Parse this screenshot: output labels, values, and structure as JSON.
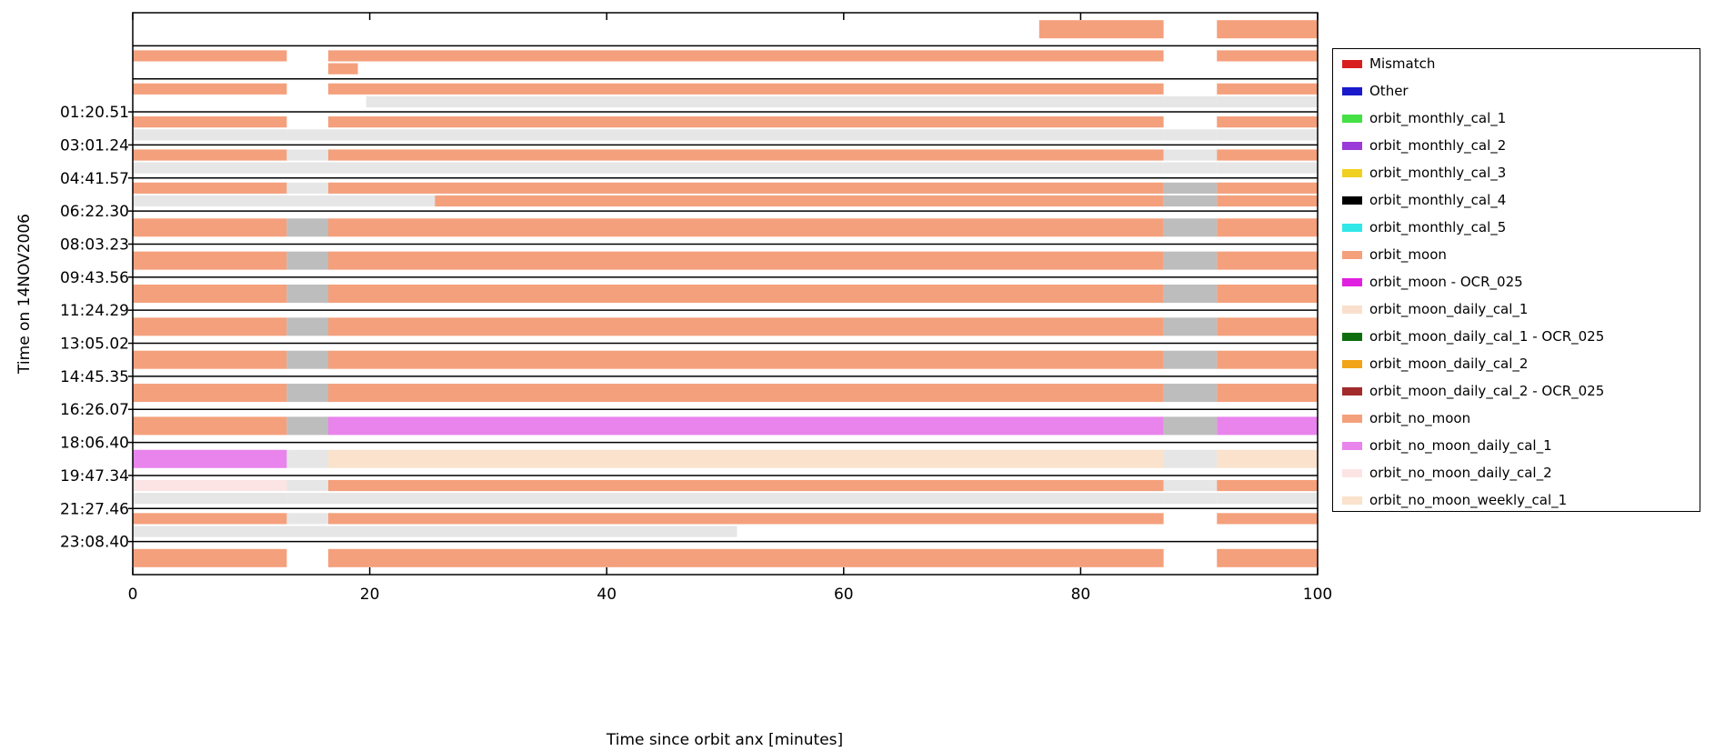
{
  "chart_data": {
    "type": "timeline",
    "xlabel": "Time since orbit anx [minutes]",
    "ylabel": "Time on 14NOV2006",
    "xlim": [
      0,
      100
    ],
    "x_ticks": [
      0,
      20,
      40,
      60,
      80,
      100
    ],
    "y_tick_labels": [
      "01:20.51",
      "03:01.24",
      "04:41.57",
      "06:22.30",
      "08:03.23",
      "09:43.56",
      "11:24.29",
      "13:05.02",
      "14:45.35",
      "16:26.07",
      "18:06.40",
      "19:47.34",
      "21:27.46",
      "23:08.40"
    ],
    "grid": false,
    "legend_position": "right",
    "legend": [
      {
        "name": "Mismatch",
        "color": "#d81e1e"
      },
      {
        "name": "Other",
        "color": "#1a1acc"
      },
      {
        "name": "orbit_monthly_cal_1",
        "color": "#44e044"
      },
      {
        "name": "orbit_monthly_cal_2",
        "color": "#9a3ad8"
      },
      {
        "name": "orbit_monthly_cal_3",
        "color": "#f0d020"
      },
      {
        "name": "orbit_monthly_cal_4",
        "color": "#000000"
      },
      {
        "name": "orbit_monthly_cal_5",
        "color": "#30e8e8"
      },
      {
        "name": "orbit_moon",
        "color": "#f4a07c"
      },
      {
        "name": "orbit_moon - OCR_025",
        "color": "#e020e0"
      },
      {
        "name": "orbit_moon_daily_cal_1",
        "color": "#fae0cc"
      },
      {
        "name": "orbit_moon_daily_cal_1 - OCR_025",
        "color": "#0e6e0e"
      },
      {
        "name": "orbit_moon_daily_cal_2",
        "color": "#f2a418"
      },
      {
        "name": "orbit_moon_daily_cal_2 - OCR_025",
        "color": "#a22a2a"
      },
      {
        "name": "orbit_no_moon",
        "color": "#f4a07c"
      },
      {
        "name": "orbit_no_moon_daily_cal_1",
        "color": "#e884ec"
      },
      {
        "name": "orbit_no_moon_daily_cal_2",
        "color": "#fce4e4"
      },
      {
        "name": "orbit_no_moon_weekly_cal_1",
        "color": "#fae2cc"
      }
    ],
    "gap_color": "#bdbdbd",
    "light_color": "#e6e6e6",
    "orbits": [
      {
        "lanes": [
          [
            [
              76.5,
              87,
              "#f4a07c"
            ],
            [
              91.5,
              100,
              "#f4a07c"
            ]
          ]
        ]
      },
      {
        "lanes": [
          [
            [
              0,
              13,
              "#f4a07c"
            ],
            [
              16.5,
              87,
              "#f4a07c"
            ],
            [
              91.5,
              100,
              "#f4a07c"
            ]
          ],
          [
            [
              16.5,
              19,
              "#f4a07c"
            ]
          ]
        ]
      },
      {
        "lanes": [
          [
            [
              0,
              13,
              "#f4a07c"
            ],
            [
              16.5,
              87,
              "#f4a07c"
            ],
            [
              91.5,
              100,
              "#f4a07c"
            ]
          ],
          [
            [
              19.7,
              87,
              "#e6e6e6"
            ],
            [
              87,
              91.5,
              "#e6e6e6"
            ],
            [
              91.5,
              100,
              "#e6e6e6"
            ]
          ]
        ]
      },
      {
        "lanes": [
          [
            [
              0,
              13,
              "#f4a07c"
            ],
            [
              16.5,
              87,
              "#f4a07c"
            ],
            [
              91.5,
              100,
              "#f4a07c"
            ]
          ],
          [
            [
              0,
              13,
              "#e6e6e6"
            ],
            [
              13,
              16.5,
              "#e6e6e6"
            ],
            [
              16.5,
              87,
              "#e6e6e6"
            ],
            [
              87,
              91.5,
              "#e6e6e6"
            ],
            [
              91.5,
              100,
              "#e6e6e6"
            ]
          ]
        ]
      },
      {
        "lanes": [
          [
            [
              0,
              13,
              "#f4a07c"
            ],
            [
              13,
              16.5,
              "#e6e6e6"
            ],
            [
              16.5,
              87,
              "#f4a07c"
            ],
            [
              87,
              91.5,
              "#e6e6e6"
            ],
            [
              91.5,
              100,
              "#f4a07c"
            ]
          ],
          [
            [
              0,
              13,
              "#e6e6e6"
            ],
            [
              13,
              16.5,
              "#e6e6e6"
            ],
            [
              16.5,
              87,
              "#e6e6e6"
            ],
            [
              87,
              91.5,
              "#e6e6e6"
            ],
            [
              91.5,
              100,
              "#e6e6e6"
            ]
          ]
        ]
      },
      {
        "lanes": [
          [
            [
              0,
              13,
              "#f4a07c"
            ],
            [
              13,
              16.5,
              "#e6e6e6"
            ],
            [
              16.5,
              87,
              "#f4a07c"
            ],
            [
              87,
              91.5,
              "#bdbdbd"
            ],
            [
              91.5,
              100,
              "#f4a07c"
            ]
          ],
          [
            [
              0,
              25.5,
              "#e6e6e6"
            ],
            [
              25.5,
              87,
              "#f4a07c"
            ],
            [
              87,
              91.5,
              "#bdbdbd"
            ],
            [
              91.5,
              100,
              "#f4a07c"
            ]
          ]
        ]
      },
      {
        "lanes": [
          [
            [
              0,
              13,
              "#f4a07c"
            ],
            [
              13,
              16.5,
              "#bdbdbd"
            ],
            [
              16.5,
              87,
              "#f4a07c"
            ],
            [
              87,
              91.5,
              "#bdbdbd"
            ],
            [
              91.5,
              100,
              "#f4a07c"
            ]
          ]
        ]
      },
      {
        "lanes": [
          [
            [
              0,
              13,
              "#f4a07c"
            ],
            [
              13,
              16.5,
              "#bdbdbd"
            ],
            [
              16.5,
              87,
              "#f4a07c"
            ],
            [
              87,
              91.5,
              "#bdbdbd"
            ],
            [
              91.5,
              100,
              "#f4a07c"
            ]
          ]
        ]
      },
      {
        "lanes": [
          [
            [
              0,
              13,
              "#f4a07c"
            ],
            [
              13,
              16.5,
              "#bdbdbd"
            ],
            [
              16.5,
              87,
              "#f4a07c"
            ],
            [
              87,
              91.5,
              "#bdbdbd"
            ],
            [
              91.5,
              100,
              "#f4a07c"
            ]
          ]
        ]
      },
      {
        "lanes": [
          [
            [
              0,
              13,
              "#f4a07c"
            ],
            [
              13,
              16.5,
              "#bdbdbd"
            ],
            [
              16.5,
              87,
              "#f4a07c"
            ],
            [
              87,
              91.5,
              "#bdbdbd"
            ],
            [
              91.5,
              100,
              "#f4a07c"
            ]
          ]
        ]
      },
      {
        "lanes": [
          [
            [
              0,
              13,
              "#f4a07c"
            ],
            [
              13,
              16.5,
              "#bdbdbd"
            ],
            [
              16.5,
              87,
              "#f4a07c"
            ],
            [
              87,
              91.5,
              "#bdbdbd"
            ],
            [
              91.5,
              100,
              "#f4a07c"
            ]
          ]
        ]
      },
      {
        "lanes": [
          [
            [
              0,
              13,
              "#f4a07c"
            ],
            [
              13,
              16.5,
              "#bdbdbd"
            ],
            [
              16.5,
              87,
              "#f4a07c"
            ],
            [
              87,
              91.5,
              "#bdbdbd"
            ],
            [
              91.5,
              100,
              "#f4a07c"
            ]
          ]
        ]
      },
      {
        "lanes": [
          [
            [
              0,
              13,
              "#f4a07c"
            ],
            [
              13,
              16.5,
              "#bdbdbd"
            ],
            [
              16.5,
              87,
              "#e884ec"
            ],
            [
              87,
              91.5,
              "#bdbdbd"
            ],
            [
              91.5,
              100,
              "#e884ec"
            ]
          ]
        ]
      },
      {
        "lanes": [
          [
            [
              0,
              13,
              "#e884ec"
            ],
            [
              13,
              16.5,
              "#e6e6e6"
            ],
            [
              16.5,
              87,
              "#fae2cc"
            ],
            [
              87,
              91.5,
              "#e6e6e6"
            ],
            [
              91.5,
              100,
              "#fae2cc"
            ]
          ]
        ]
      },
      {
        "lanes": [
          [
            [
              0,
              13,
              "#fce4e4"
            ],
            [
              13,
              16.5,
              "#e6e6e6"
            ],
            [
              16.5,
              87,
              "#f4a07c"
            ],
            [
              87,
              91.5,
              "#e6e6e6"
            ],
            [
              91.5,
              100,
              "#f4a07c"
            ]
          ],
          [
            [
              0,
              13,
              "#e6e6e6"
            ],
            [
              13,
              16.5,
              "#e6e6e6"
            ],
            [
              16.5,
              87,
              "#e6e6e6"
            ],
            [
              87,
              91.5,
              "#e6e6e6"
            ],
            [
              91.5,
              100,
              "#e6e6e6"
            ]
          ]
        ]
      },
      {
        "lanes": [
          [
            [
              0,
              13,
              "#f4a07c"
            ],
            [
              13,
              16.5,
              "#e6e6e6"
            ],
            [
              16.5,
              87,
              "#f4a07c"
            ],
            [
              91.5,
              100,
              "#f4a07c"
            ]
          ],
          [
            [
              0,
              51,
              "#e6e6e6"
            ]
          ]
        ]
      },
      {
        "lanes": [
          [
            [
              0,
              13,
              "#f4a07c"
            ],
            [
              16.5,
              87,
              "#f4a07c"
            ],
            [
              91.5,
              100,
              "#f4a07c"
            ]
          ]
        ]
      }
    ]
  }
}
